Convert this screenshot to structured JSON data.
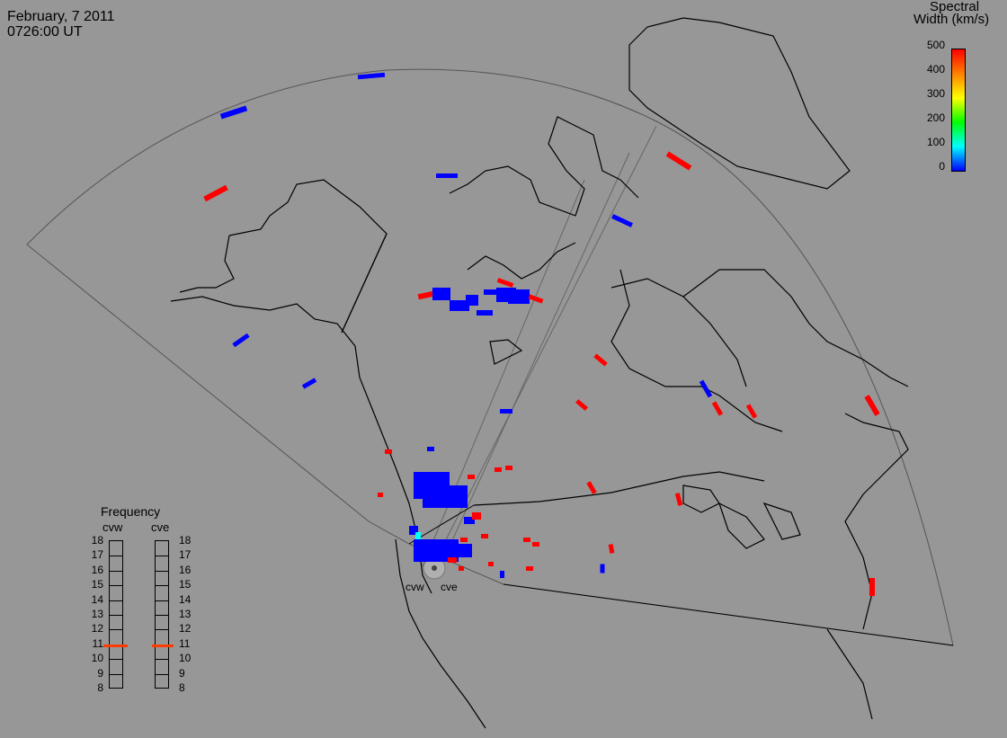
{
  "header": {
    "date": "February, 7 2011",
    "time": "0726:00 UT"
  },
  "colorbar": {
    "title_line1": "Spectral",
    "title_line2": "Width (km/s)",
    "ticks": [
      "500",
      "400",
      "300",
      "200",
      "100",
      "0"
    ],
    "range": [
      0,
      500
    ],
    "gradient": [
      "#ff0000",
      "#ff8000",
      "#ffff00",
      "#00ff00",
      "#00ffff",
      "#0000ff"
    ]
  },
  "radars": [
    {
      "code": "cvw",
      "frequency_mhz": 10.8
    },
    {
      "code": "cve",
      "frequency_mhz": 10.8
    }
  ],
  "frequency_panel": {
    "title": "Frequency",
    "labels": [
      "18",
      "17",
      "16",
      "15",
      "14",
      "13",
      "12",
      "11",
      "10",
      "9",
      "8"
    ],
    "range": [
      8,
      18
    ],
    "marker_color": "#ff3b00"
  },
  "colors": {
    "background": "#979797",
    "high_width": "#ff0000",
    "low_width": "#0000ff",
    "mid_width": "#00ffff"
  }
}
